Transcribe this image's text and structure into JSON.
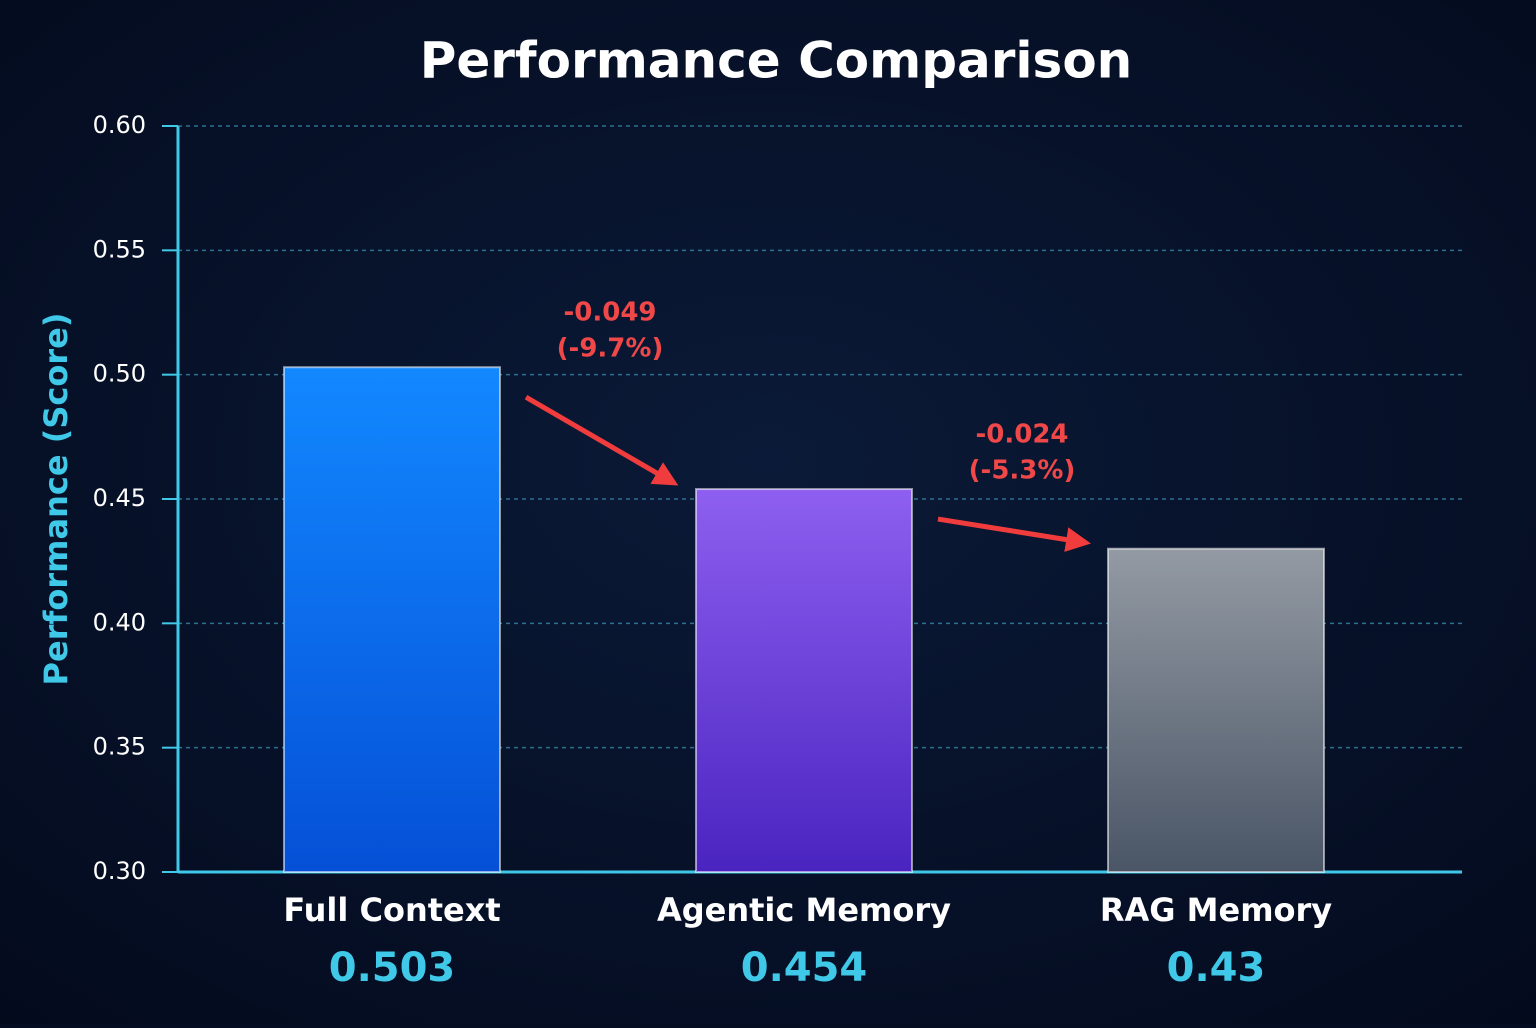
{
  "chart_data": {
    "type": "bar",
    "title": "Performance Comparison",
    "y_label": "Performance (Score)",
    "categories": [
      "Full Context",
      "Agentic Memory",
      "RAG Memory"
    ],
    "values": [
      0.503,
      0.454,
      0.43
    ],
    "colors": [
      [
        "#1288ff",
        "#0550d6"
      ],
      [
        "#8e5ff0",
        "#4a24c0"
      ],
      [
        "#939aa3",
        "#4a5566"
      ]
    ],
    "ylim": [
      0.3,
      0.6
    ],
    "yticks": [
      {
        "value": 0.3,
        "label": "0.30"
      },
      0.35,
      {
        "value": 0.4,
        "label": "0.40"
      },
      0.45,
      {
        "value": 0.5,
        "label": "0.50"
      },
      0.55,
      {
        "value": 0.6,
        "label": "0.60"
      }
    ],
    "grid": true,
    "annotations": [
      {
        "lines": [
          "-0.049",
          "(-9.7%)"
        ]
      },
      {
        "lines": [
          "-0.024",
          "(-5.3%)"
        ]
      }
    ]
  }
}
